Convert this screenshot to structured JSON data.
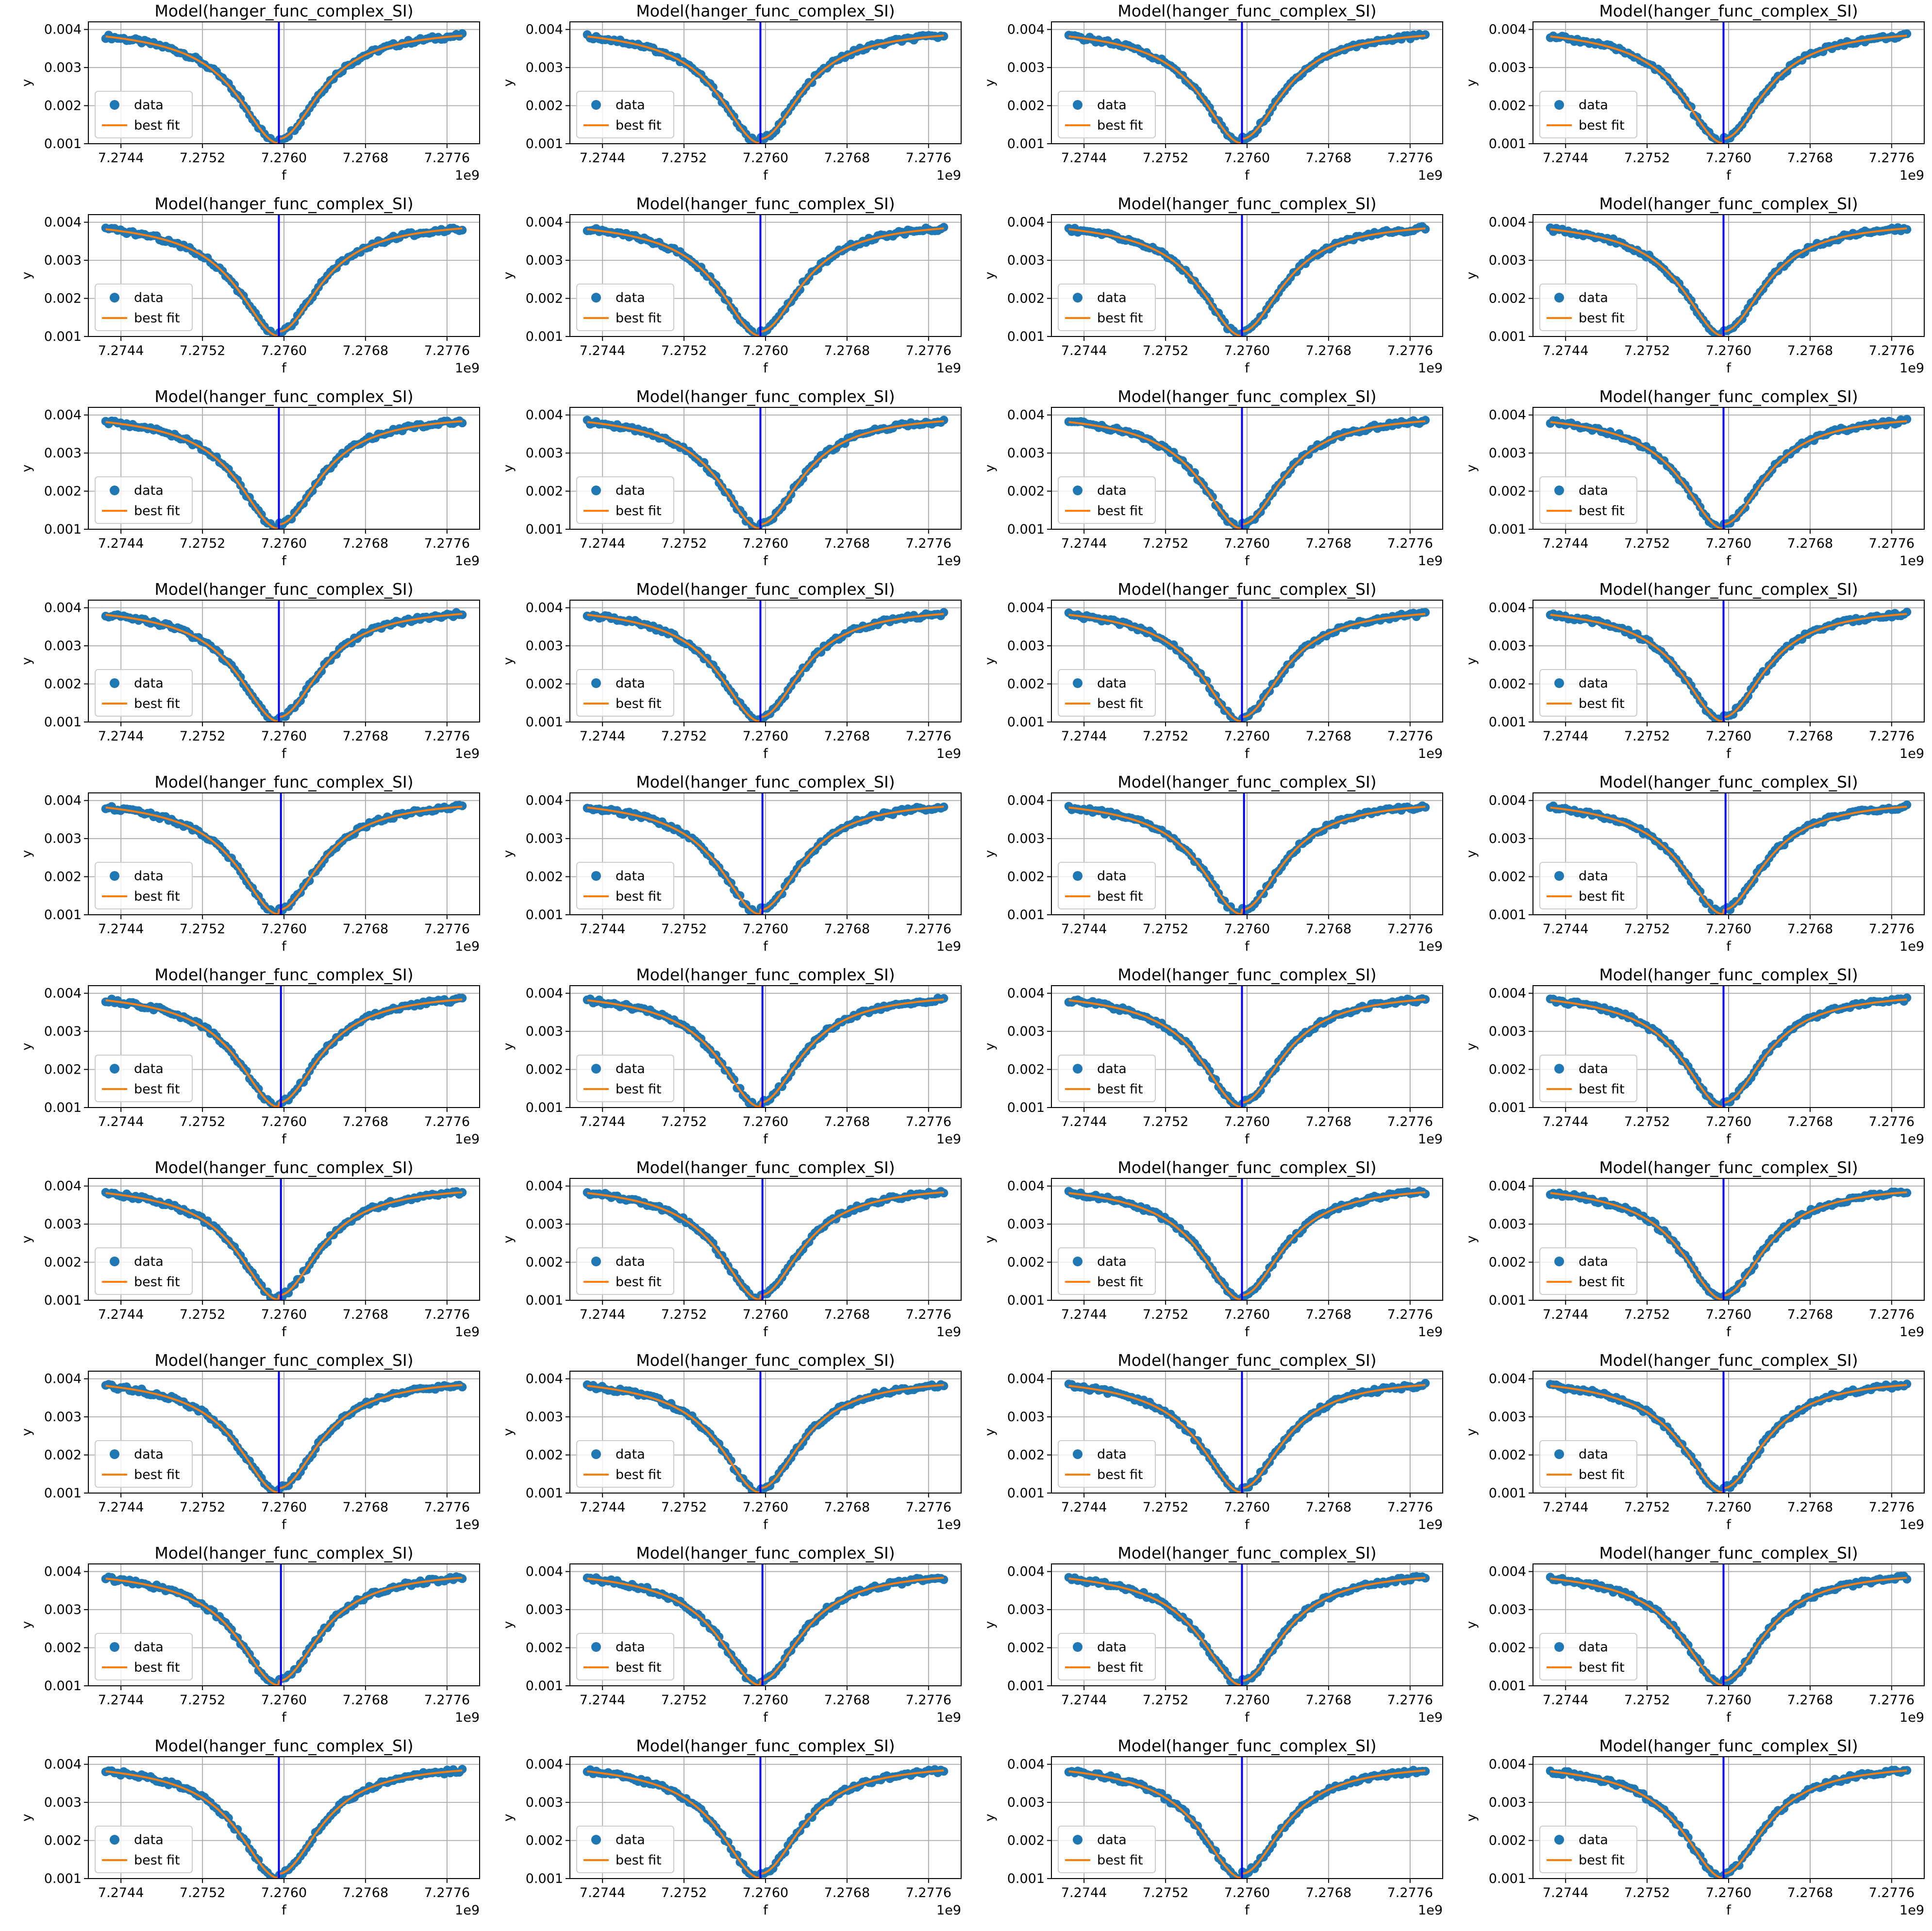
{
  "colors": {
    "data": "#1f77b4",
    "fit": "#ff7f0e",
    "vline": "#0000ff",
    "grid": "#b0b0b0",
    "frame": "#000000"
  },
  "chart_data": {
    "type": "scatter",
    "layout": {
      "rows": 10,
      "cols": 4,
      "panels": 40
    },
    "title": "Model(hanger_func_complex_SI)",
    "xlabel": "f",
    "ylabel": "y",
    "x_offset_text": "1e9",
    "x_unit_multiplier": 1000000000,
    "xlim": [
      7.27408,
      7.27792
    ],
    "ylim": [
      0.001,
      0.0042
    ],
    "x_ticks": [
      7.2744,
      7.2752,
      7.276,
      7.2768,
      7.2776
    ],
    "x_tick_labels": [
      "7.2744",
      "7.2752",
      "7.2760",
      "7.2768",
      "7.2776"
    ],
    "y_ticks": [
      0.001,
      0.002,
      0.003,
      0.004
    ],
    "y_tick_labels": [
      "0.001",
      "0.002",
      "0.003",
      "0.004"
    ],
    "grid": true,
    "legend": {
      "placement": "lower-left",
      "entries": [
        "data",
        "best fit"
      ]
    },
    "series": [
      {
        "name": "data",
        "kind": "scatter",
        "color": "#1f77b4"
      },
      {
        "name": "best fit",
        "kind": "line",
        "color": "#ff7f0e"
      }
    ],
    "model": {
      "baseline": 0.00403,
      "depth": 0.0029,
      "half_width_ghz": 0.00048,
      "left_slope_per_ghz": -0.2,
      "x_start": 7.27425,
      "x_end": 7.27775,
      "n_points": 120
    },
    "vertical_line_note": "blue vertical line at resonance frequency",
    "resonance_frequencies": [
      7.27595,
      7.27595,
      7.27595,
      7.27595,
      7.27595,
      7.27595,
      7.27595,
      7.27595,
      7.27595,
      7.27595,
      7.27595,
      7.27595,
      7.27595,
      7.27595,
      7.27595,
      7.27595,
      7.27597,
      7.27597,
      7.27597,
      7.27597,
      7.27597,
      7.27597,
      7.27595,
      7.27595,
      7.27597,
      7.27597,
      7.27595,
      7.27595,
      7.27595,
      7.27595,
      7.27595,
      7.27595,
      7.27597,
      7.27597,
      7.27595,
      7.27595,
      7.27595,
      7.27595,
      7.27595,
      7.27595
    ]
  }
}
